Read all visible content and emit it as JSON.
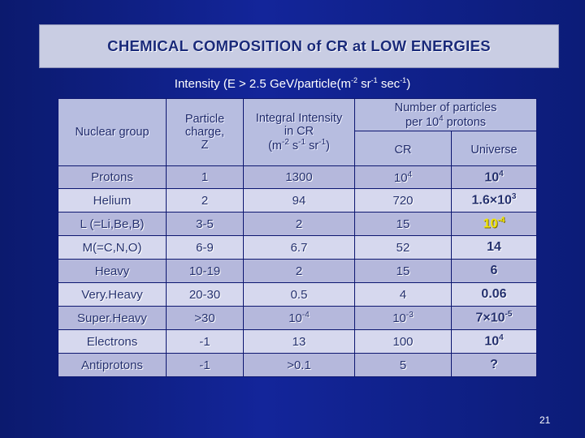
{
  "title": "CHEMICAL COMPOSITION of CR at LOW ENERGIES",
  "subtitle": {
    "prefix": "Intensity (E > 2.5 GeV/particle(m",
    "exp1": "-2",
    "mid1": " sr",
    "exp2": "-1",
    "mid2": " sec",
    "exp3": "-1",
    "suffix": ")"
  },
  "header": {
    "group": "Nuclear group",
    "charge_line1": "Particle",
    "charge_line2": "charge,",
    "charge_line3": "Z",
    "intensity_line1": "Integral Intensity",
    "intensity_line2": "in CR",
    "intensity_unit_open": "(m",
    "intensity_unit_exp1": "-2",
    "intensity_unit_mid1": " s",
    "intensity_unit_exp2": "-1",
    "intensity_unit_mid2": " sr",
    "intensity_unit_exp3": "-1",
    "intensity_unit_close": ")",
    "number_line1": "Number of particles",
    "number_line2_prefix": "per 10",
    "number_line2_exp": "4",
    "number_line2_suffix": " protons",
    "cr": "CR",
    "universe": "Universe"
  },
  "rows": [
    {
      "group": "Protons",
      "charge": "1",
      "intensity": "1300",
      "cr": "10",
      "cr_exp": "4",
      "universe": "10",
      "universe_exp": "4"
    },
    {
      "group": "Helium",
      "charge": "2",
      "intensity": "94",
      "cr": "720",
      "universe": "1.6×10",
      "universe_exp": "3"
    },
    {
      "group": "L (=Li,Be,B)",
      "charge": "3-5",
      "intensity": "2",
      "cr": "15",
      "universe": "10",
      "universe_exp": "-4"
    },
    {
      "group": "M(=C,N,O)",
      "charge": "6-9",
      "intensity": "6.7",
      "cr": "52",
      "universe": "14"
    },
    {
      "group": "Heavy",
      "charge": "10-19",
      "intensity": "2",
      "cr": "15",
      "universe": "6"
    },
    {
      "group": "Very.Heavy",
      "charge": "20-30",
      "intensity": "0.5",
      "cr": "4",
      "universe": "0.06"
    },
    {
      "group": "Super.Heavy",
      "charge": ">30",
      "intensity": "10",
      "intensity_exp": "-4",
      "cr": "10",
      "cr_exp": "-3",
      "universe": "7×10",
      "universe_exp": "-5"
    },
    {
      "group": "Electrons",
      "charge": "-1",
      "intensity": "13",
      "cr": "100",
      "universe": "10",
      "universe_exp": "4"
    },
    {
      "group": "Antiprotons",
      "charge": "-1",
      "intensity": ">0.1",
      "cr": "5",
      "universe": "?"
    }
  ],
  "page_number": "21",
  "colors": {
    "background": "#13259a",
    "title_box": "#c9cde3",
    "row_dark": "#b5b8dc",
    "row_light": "#d6d8ee",
    "highlight": "#f2e600"
  }
}
